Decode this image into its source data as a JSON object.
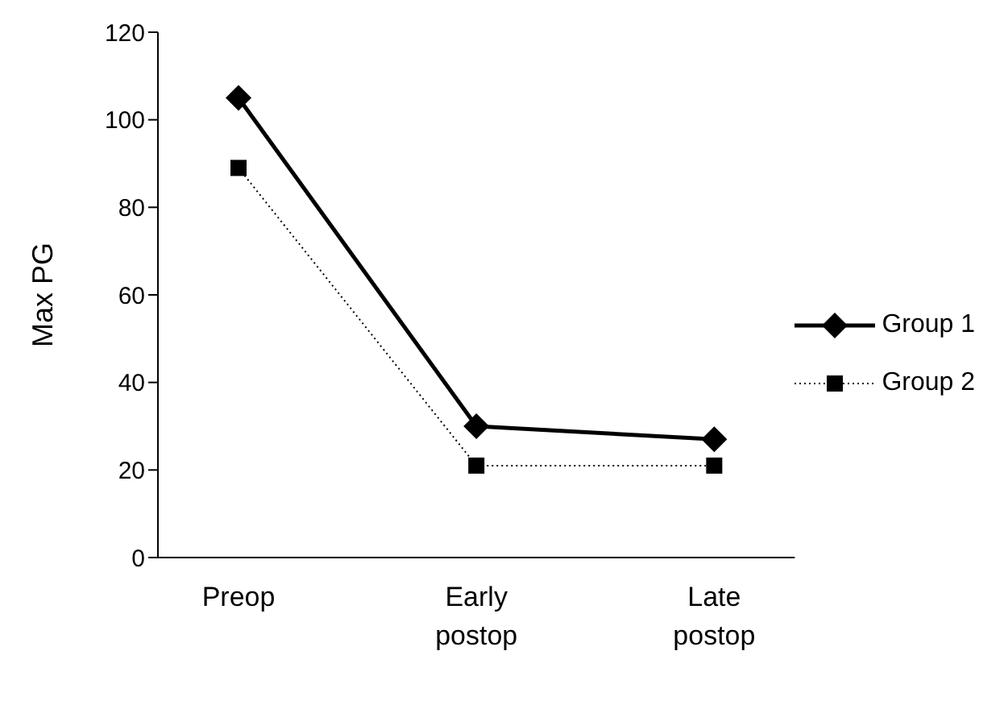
{
  "chart_data": {
    "type": "line",
    "ylabel": "Max PG",
    "categories": [
      "Preop",
      "Early\npostop",
      "Late\npostop"
    ],
    "series": [
      {
        "name": "Group 1",
        "color": "#000000",
        "values": [
          105,
          30,
          27
        ],
        "marker": "diamond",
        "line_style": "solid"
      },
      {
        "name": "Group 2",
        "color": "#000000",
        "values": [
          89,
          21,
          21
        ],
        "marker": "square",
        "line_style": "dotted"
      }
    ],
    "ylim": [
      0,
      120
    ],
    "yticks": [
      0,
      20,
      40,
      60,
      80,
      100,
      120
    ],
    "grid": false,
    "legend": "right"
  }
}
